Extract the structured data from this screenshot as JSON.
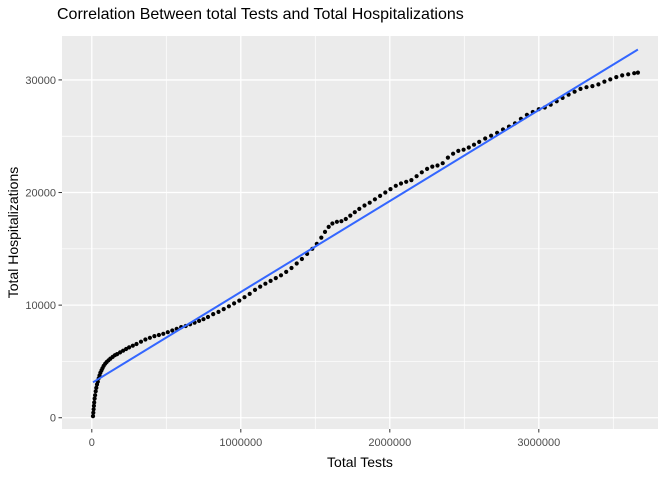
{
  "chart_data": {
    "type": "scatter",
    "title": "Correlation Between total Tests and Total Hospitalizations",
    "xlabel": "Total Tests",
    "ylabel": "Total Hospitalizations",
    "xlim": [
      -200000,
      3800000
    ],
    "ylim": [
      -1000,
      33900
    ],
    "x_ticks": [
      0,
      1000000,
      2000000,
      3000000
    ],
    "x_tick_labels": [
      "0",
      "1000000",
      "2000000",
      "3000000"
    ],
    "x_minor_ticks": [
      500000,
      1500000,
      2500000,
      3500000
    ],
    "y_ticks": [
      0,
      10000,
      20000,
      30000
    ],
    "y_tick_labels": [
      "0",
      "10000",
      "20000",
      "30000"
    ],
    "y_minor_ticks": [
      5000,
      15000,
      25000
    ],
    "grid": true,
    "legend": false,
    "colors": {
      "panel_bg": "#EBEBEB",
      "grid": "#FFFFFF",
      "plot_bg": "#FFFFFF",
      "tick_label": "#4D4D4D",
      "axis_text": "#000000",
      "point": "#000000",
      "fit_line": "#3366FF",
      "tick_mark": "#333333"
    },
    "series": [
      {
        "name": "observations",
        "kind": "scatter",
        "color": "#000000",
        "points": [
          [
            8000,
            150
          ],
          [
            10000,
            450
          ],
          [
            12000,
            750
          ],
          [
            14000,
            1050
          ],
          [
            16000,
            1350
          ],
          [
            19000,
            1700
          ],
          [
            22000,
            2000
          ],
          [
            26000,
            2350
          ],
          [
            30000,
            2650
          ],
          [
            35000,
            2950
          ],
          [
            40000,
            3200
          ],
          [
            46000,
            3500
          ],
          [
            52000,
            3750
          ],
          [
            58000,
            4000
          ],
          [
            65000,
            4200
          ],
          [
            72000,
            4400
          ],
          [
            80000,
            4600
          ],
          [
            90000,
            4800
          ],
          [
            100000,
            4950
          ],
          [
            112000,
            5100
          ],
          [
            125000,
            5250
          ],
          [
            140000,
            5400
          ],
          [
            155000,
            5550
          ],
          [
            170000,
            5650
          ],
          [
            190000,
            5800
          ],
          [
            210000,
            5950
          ],
          [
            230000,
            6100
          ],
          [
            250000,
            6250
          ],
          [
            275000,
            6400
          ],
          [
            300000,
            6550
          ],
          [
            330000,
            6750
          ],
          [
            360000,
            6950
          ],
          [
            390000,
            7100
          ],
          [
            420000,
            7250
          ],
          [
            450000,
            7350
          ],
          [
            480000,
            7450
          ],
          [
            510000,
            7600
          ],
          [
            540000,
            7750
          ],
          [
            570000,
            7900
          ],
          [
            600000,
            8050
          ],
          [
            630000,
            8150
          ],
          [
            660000,
            8300
          ],
          [
            690000,
            8450
          ],
          [
            720000,
            8600
          ],
          [
            750000,
            8750
          ],
          [
            780000,
            8950
          ],
          [
            815000,
            9200
          ],
          [
            850000,
            9400
          ],
          [
            885000,
            9650
          ],
          [
            920000,
            9900
          ],
          [
            955000,
            10150
          ],
          [
            990000,
            10400
          ],
          [
            1025000,
            10700
          ],
          [
            1060000,
            11000
          ],
          [
            1095000,
            11350
          ],
          [
            1130000,
            11650
          ],
          [
            1165000,
            11900
          ],
          [
            1200000,
            12150
          ],
          [
            1235000,
            12400
          ],
          [
            1270000,
            12650
          ],
          [
            1305000,
            12950
          ],
          [
            1340000,
            13300
          ],
          [
            1375000,
            13700
          ],
          [
            1410000,
            14100
          ],
          [
            1445000,
            14550
          ],
          [
            1480000,
            15000
          ],
          [
            1510000,
            15450
          ],
          [
            1540000,
            16000
          ],
          [
            1565000,
            16500
          ],
          [
            1590000,
            16950
          ],
          [
            1615000,
            17250
          ],
          [
            1645000,
            17400
          ],
          [
            1675000,
            17450
          ],
          [
            1705000,
            17650
          ],
          [
            1735000,
            17950
          ],
          [
            1765000,
            18250
          ],
          [
            1795000,
            18550
          ],
          [
            1830000,
            18850
          ],
          [
            1865000,
            19100
          ],
          [
            1900000,
            19400
          ],
          [
            1935000,
            19700
          ],
          [
            1970000,
            20000
          ],
          [
            2005000,
            20300
          ],
          [
            2040000,
            20600
          ],
          [
            2075000,
            20800
          ],
          [
            2110000,
            20950
          ],
          [
            2145000,
            21100
          ],
          [
            2180000,
            21450
          ],
          [
            2215000,
            21800
          ],
          [
            2250000,
            22100
          ],
          [
            2285000,
            22300
          ],
          [
            2320000,
            22400
          ],
          [
            2355000,
            22600
          ],
          [
            2390000,
            23100
          ],
          [
            2425000,
            23450
          ],
          [
            2460000,
            23700
          ],
          [
            2495000,
            23800
          ],
          [
            2530000,
            24000
          ],
          [
            2565000,
            24250
          ],
          [
            2600000,
            24500
          ],
          [
            2640000,
            24800
          ],
          [
            2680000,
            25050
          ],
          [
            2720000,
            25300
          ],
          [
            2760000,
            25600
          ],
          [
            2800000,
            25850
          ],
          [
            2840000,
            26150
          ],
          [
            2880000,
            26550
          ],
          [
            2920000,
            26900
          ],
          [
            2960000,
            27150
          ],
          [
            3000000,
            27400
          ],
          [
            3040000,
            27550
          ],
          [
            3080000,
            27800
          ],
          [
            3120000,
            28100
          ],
          [
            3160000,
            28400
          ],
          [
            3200000,
            28700
          ],
          [
            3240000,
            28950
          ],
          [
            3280000,
            29200
          ],
          [
            3320000,
            29350
          ],
          [
            3360000,
            29450
          ],
          [
            3400000,
            29600
          ],
          [
            3440000,
            29850
          ],
          [
            3480000,
            30050
          ],
          [
            3520000,
            30250
          ],
          [
            3560000,
            30400
          ],
          [
            3600000,
            30500
          ],
          [
            3640000,
            30600
          ],
          [
            3665000,
            30650
          ]
        ]
      },
      {
        "name": "linear-fit",
        "kind": "line",
        "color": "#3366FF",
        "points": [
          [
            8000,
            3150
          ],
          [
            3665000,
            32700
          ]
        ]
      }
    ]
  }
}
